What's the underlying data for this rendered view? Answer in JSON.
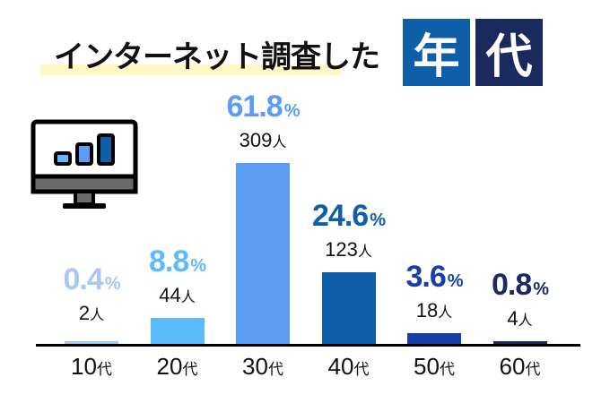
{
  "title": {
    "main": "インターネット調査した",
    "box1": "年",
    "box2": "代",
    "box1_color": "#0e5fa8",
    "box2_color": "#1b2a5e",
    "highlight_color": "#fff8c4"
  },
  "icon": "monitor-bar-chart-icon",
  "chart_data": {
    "type": "bar",
    "title": "インターネット調査した年代",
    "xlabel": "",
    "ylabel": "",
    "categories": [
      "10代",
      "20代",
      "30代",
      "40代",
      "50代",
      "60代"
    ],
    "values": [
      0.4,
      8.8,
      61.8,
      24.6,
      3.6,
      0.8
    ],
    "counts": [
      2,
      44,
      309,
      123,
      18,
      4
    ],
    "value_labels": [
      "0.4",
      "8.8",
      "61.8",
      "24.6",
      "3.6",
      "0.8"
    ],
    "percent_unit": "%",
    "count_unit": "人",
    "category_unit": "代",
    "category_numbers": [
      "10",
      "20",
      "30",
      "40",
      "50",
      "60"
    ],
    "colors": [
      "#a8c8f4",
      "#5bbcfc",
      "#5c9cf4",
      "#0e5fa8",
      "#1640a8",
      "#1b2a5e"
    ],
    "ylim": [
      0,
      61.8
    ],
    "grid": false,
    "legend": "none"
  }
}
